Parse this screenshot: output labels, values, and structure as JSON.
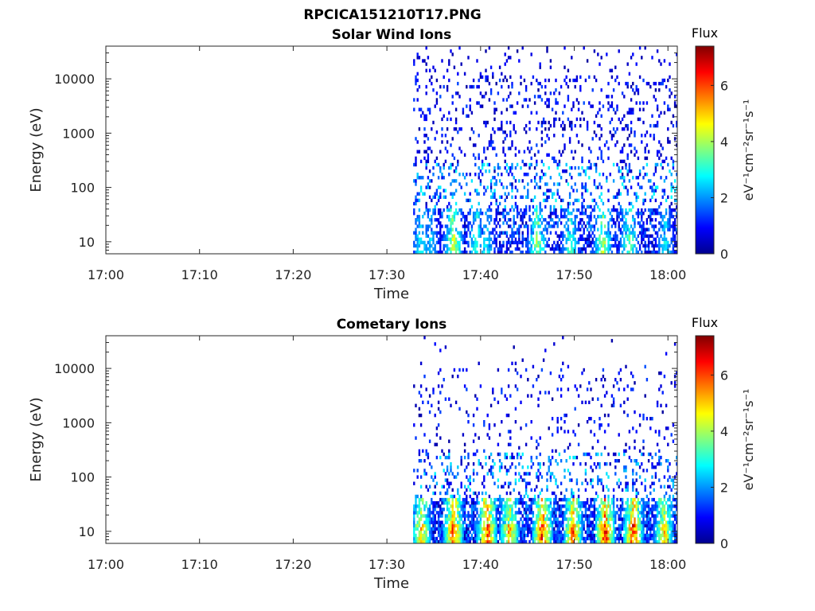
{
  "figure": {
    "title": "RPCICA151210T17.PNG"
  },
  "chart_data": [
    {
      "type": "heatmap",
      "title": "Solar Wind Ions",
      "xlabel": "Time",
      "ylabel": "Energy (eV)",
      "x_ticks": [
        "17:00",
        "17:10",
        "17:20",
        "17:30",
        "17:40",
        "17:50",
        "18:00"
      ],
      "xlim_minutes": [
        0,
        61
      ],
      "y_ticks": [
        "10",
        "100",
        "1000",
        "10000"
      ],
      "y_scale": "log",
      "ylim": [
        6,
        40000
      ],
      "data_start_minute": 32.8,
      "colorbar": {
        "label": "Flux",
        "unit": "eV⁻¹cm⁻²sr⁻¹s⁻¹",
        "ticks": [
          "0",
          "2",
          "4",
          "6"
        ],
        "range": [
          0,
          7.4
        ],
        "colormap": "jet"
      },
      "bright_bands": [
        {
          "minute": 33.6,
          "energy": 8,
          "level": 3.2
        },
        {
          "minute": 34.6,
          "energy": 8,
          "level": 2.6
        },
        {
          "minute": 37.0,
          "energy": 8,
          "level": 4.6
        },
        {
          "minute": 39.5,
          "energy": 8,
          "level": 3.5
        },
        {
          "minute": 40.5,
          "energy": 8,
          "level": 3.0
        },
        {
          "minute": 46.0,
          "energy": 8,
          "level": 4.3
        },
        {
          "minute": 49.5,
          "energy": 8,
          "level": 3.6
        },
        {
          "minute": 53.0,
          "energy": 8,
          "level": 4.4
        },
        {
          "minute": 55.8,
          "energy": 8,
          "level": 4.0
        },
        {
          "minute": 59.6,
          "energy": 8,
          "level": 3.0
        }
      ]
    },
    {
      "type": "heatmap",
      "title": "Cometary Ions",
      "xlabel": "Time",
      "ylabel": "Energy (eV)",
      "x_ticks": [
        "17:00",
        "17:10",
        "17:20",
        "17:30",
        "17:40",
        "17:50",
        "18:00"
      ],
      "xlim_minutes": [
        0,
        61
      ],
      "y_ticks": [
        "10",
        "100",
        "1000",
        "10000"
      ],
      "y_scale": "log",
      "ylim": [
        6,
        40000
      ],
      "data_start_minute": 32.8,
      "colorbar": {
        "label": "Flux",
        "unit": "eV⁻¹cm⁻²sr⁻¹s⁻¹",
        "ticks": [
          "0",
          "2",
          "4",
          "6"
        ],
        "range": [
          0,
          7.4
        ],
        "colormap": "jet"
      },
      "bright_bands": [
        {
          "minute": 33.6,
          "energy": 9,
          "level": 5.4
        },
        {
          "minute": 37.0,
          "energy": 9,
          "level": 6.5
        },
        {
          "minute": 40.6,
          "energy": 9,
          "level": 6.7
        },
        {
          "minute": 43.0,
          "energy": 9,
          "level": 5.6
        },
        {
          "minute": 46.5,
          "energy": 9,
          "level": 6.7
        },
        {
          "minute": 49.8,
          "energy": 9,
          "level": 6.2
        },
        {
          "minute": 53.2,
          "energy": 9,
          "level": 6.9
        },
        {
          "minute": 56.2,
          "energy": 9,
          "level": 6.6
        },
        {
          "minute": 59.5,
          "energy": 9,
          "level": 5.3
        }
      ]
    }
  ]
}
